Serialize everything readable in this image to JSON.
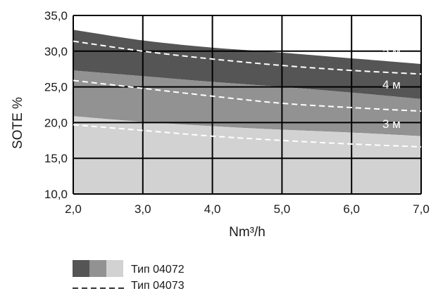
{
  "chart_data": {
    "type": "area",
    "xlabel": "Nm³/h",
    "ylabel": "SOTE %",
    "xlim": [
      2,
      7
    ],
    "ylim": [
      10,
      35
    ],
    "xticks": [
      "2,0",
      "3,0",
      "4,0",
      "5,0",
      "6,0",
      "7,0"
    ],
    "yticks": [
      "10,0",
      "15,0",
      "20,0",
      "25,0",
      "30,0",
      "35,0"
    ],
    "grid": true,
    "x": [
      2,
      3,
      4,
      5,
      6,
      7
    ],
    "bands": [
      {
        "label": "5 м",
        "upper": [
          33.0,
          31.5,
          30.5,
          29.8,
          29.0,
          28.2
        ],
        "lower": [
          27.3,
          26.5,
          25.7,
          25.0,
          24.2,
          23.3
        ],
        "color": "#555555"
      },
      {
        "label": "4 м",
        "upper": [
          27.3,
          26.5,
          25.7,
          25.0,
          24.2,
          23.3
        ],
        "lower": [
          20.9,
          20.1,
          19.5,
          19.0,
          18.6,
          18.1
        ],
        "color": "#929292"
      },
      {
        "label": "3 м",
        "upper": [
          20.9,
          20.1,
          19.5,
          19.0,
          18.6,
          18.1
        ],
        "lower": [
          10.0,
          10.0,
          10.0,
          10.0,
          10.0,
          10.0
        ],
        "color": "#d2d2d2"
      }
    ],
    "series": [
      {
        "name": "5 м",
        "type": "dashed",
        "values": [
          31.4,
          30.0,
          28.9,
          28.0,
          27.3,
          26.8
        ]
      },
      {
        "name": "4 м",
        "type": "dashed",
        "values": [
          25.9,
          24.8,
          23.7,
          22.7,
          22.1,
          21.6
        ]
      },
      {
        "name": "3 м",
        "type": "dashed",
        "values": [
          19.7,
          18.9,
          18.1,
          17.5,
          17.0,
          16.6
        ]
      }
    ],
    "legend": [
      {
        "label": "Тип 04072",
        "style": "swatches",
        "colors": [
          "#555555",
          "#929292",
          "#d2d2d2"
        ]
      },
      {
        "label": "Тип 04073",
        "style": "dashed"
      }
    ]
  }
}
